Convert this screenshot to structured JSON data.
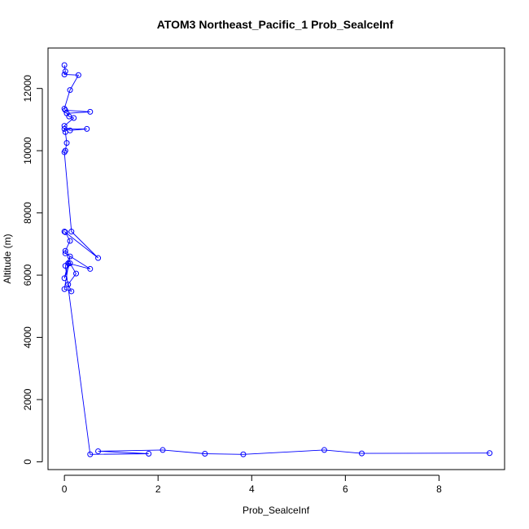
{
  "chart_data": {
    "type": "line",
    "title": "ATOM3 Northeast_Pacific_1 Prob_SealceInf",
    "xlabel": "Prob_SealceInf",
    "ylabel": "Altitude (m)",
    "xlim": [
      -0.35,
      9.4
    ],
    "ylim": [
      -250,
      13300
    ],
    "x_ticks": [
      0,
      2,
      4,
      6,
      8
    ],
    "y_ticks": [
      0,
      2000,
      4000,
      6000,
      8000,
      10000,
      12000
    ],
    "grid": false,
    "legend": "none",
    "marker": "open-circle",
    "color": "#0000ff",
    "series": [
      {
        "x": [
          0.0,
          0.02,
          0.0,
          0.3,
          0.12,
          0.0,
          0.02,
          0.55,
          0.05,
          0.1,
          0.2,
          0.0,
          0.12,
          0.48,
          0.0,
          0.02,
          0.05,
          0.02,
          0.0,
          0.15,
          0.72,
          0.0,
          0.02,
          0.12,
          0.02,
          0.02,
          0.55,
          0.08,
          0.0,
          0.12,
          0.25,
          0.08,
          0.15,
          0.0,
          0.12,
          0.02,
          0.55,
          1.8,
          0.72,
          2.1,
          3.0,
          3.82,
          5.55,
          6.35,
          9.08
        ],
        "y": [
          12750,
          12550,
          12450,
          12430,
          11950,
          11350,
          11300,
          11250,
          11200,
          11100,
          11050,
          10800,
          10650,
          10700,
          10700,
          10600,
          10250,
          10000,
          9950,
          7400,
          6550,
          7400,
          7380,
          7100,
          6780,
          6700,
          6200,
          6380,
          5900,
          6380,
          6050,
          5700,
          5480,
          5550,
          6600,
          6300,
          240,
          260,
          340,
          380,
          260,
          240,
          380,
          270,
          280
        ]
      }
    ]
  }
}
